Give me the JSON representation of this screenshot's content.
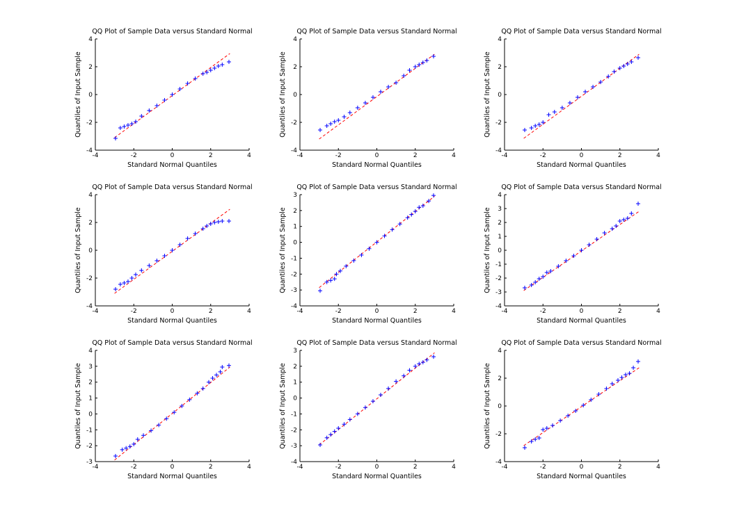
{
  "figure": {
    "background": "#ffffff",
    "axis_color": "#000000",
    "marker_color": "#0000ff",
    "reference_line_color": "#ff0000",
    "marker": "+"
  },
  "chart_data": [
    {
      "type": "scatter",
      "title": "QQ Plot of Sample Data versus Standard Normal",
      "xlabel": "Standard Normal Quantiles",
      "ylabel": "Quantiles of Input Sample",
      "xlim": [
        -4,
        4
      ],
      "ylim": [
        -4,
        4
      ],
      "xticks": [
        "-4",
        "-2",
        "0",
        "2",
        "4"
      ],
      "yticks": [
        "-4",
        "-2",
        "0",
        "2",
        "4"
      ],
      "grid": false,
      "reference_line": {
        "x": [
          -3,
          3
        ],
        "y": [
          -3.1,
          2.95
        ]
      },
      "series": [
        {
          "x": [
            -2.95,
            -2.7,
            -2.5,
            -2.3,
            -2.1,
            -1.9,
            -1.6,
            -1.2,
            -0.8,
            -0.4,
            0,
            0.4,
            0.8,
            1.2,
            1.6,
            1.8,
            2.0,
            2.2,
            2.4,
            2.6,
            2.95
          ],
          "y": [
            -3.15,
            -2.4,
            -2.3,
            -2.2,
            -2.1,
            -1.95,
            -1.55,
            -1.15,
            -0.8,
            -0.4,
            0,
            0.4,
            0.8,
            1.15,
            1.5,
            1.6,
            1.75,
            1.9,
            2.05,
            2.15,
            2.35
          ]
        }
      ]
    },
    {
      "type": "scatter",
      "title": "QQ Plot of Sample Data versus Standard Normal",
      "xlabel": "Standard Normal Quantiles",
      "ylabel": "Quantiles of Input Sample",
      "xlim": [
        -4,
        4
      ],
      "ylim": [
        -4,
        4
      ],
      "xticks": [
        "-4",
        "-2",
        "0",
        "2",
        "4"
      ],
      "yticks": [
        "-4",
        "-2",
        "0",
        "2",
        "4"
      ],
      "grid": false,
      "reference_line": {
        "x": [
          -3,
          3
        ],
        "y": [
          -3.2,
          2.9
        ]
      },
      "series": [
        {
          "x": [
            -2.95,
            -2.6,
            -2.4,
            -2.2,
            -2.0,
            -1.7,
            -1.4,
            -1.0,
            -0.6,
            -0.2,
            0.2,
            0.6,
            1.0,
            1.4,
            1.7,
            2.0,
            2.2,
            2.4,
            2.6,
            2.95
          ],
          "y": [
            -2.55,
            -2.25,
            -2.1,
            -1.95,
            -1.85,
            -1.6,
            -1.3,
            -0.95,
            -0.6,
            -0.2,
            0.2,
            0.55,
            0.85,
            1.35,
            1.75,
            2.0,
            2.15,
            2.3,
            2.45,
            2.75
          ]
        }
      ]
    },
    {
      "type": "scatter",
      "title": "QQ Plot of Sample Data versus Standard Normal",
      "xlabel": "Standard Normal Quantiles",
      "ylabel": "Quantiles of Input Sample",
      "xlim": [
        -4,
        4
      ],
      "ylim": [
        -4,
        4
      ],
      "xticks": [
        "-4",
        "-2",
        "0",
        "2",
        "4"
      ],
      "yticks": [
        "-4",
        "-2",
        "0",
        "2",
        "4"
      ],
      "grid": false,
      "reference_line": {
        "x": [
          -3,
          3
        ],
        "y": [
          -3.15,
          2.9
        ]
      },
      "series": [
        {
          "x": [
            -2.95,
            -2.6,
            -2.4,
            -2.2,
            -2.0,
            -1.7,
            -1.4,
            -1.0,
            -0.6,
            -0.2,
            0.2,
            0.6,
            1.0,
            1.4,
            1.7,
            2.0,
            2.2,
            2.4,
            2.6,
            2.95
          ],
          "y": [
            -2.55,
            -2.4,
            -2.25,
            -2.15,
            -2.0,
            -1.45,
            -1.25,
            -0.95,
            -0.6,
            -0.2,
            0.2,
            0.55,
            0.9,
            1.3,
            1.65,
            1.9,
            2.05,
            2.2,
            2.35,
            2.65
          ]
        }
      ]
    },
    {
      "type": "scatter",
      "title": "QQ Plot of Sample Data versus Standard Normal",
      "xlabel": "Standard Normal Quantiles",
      "ylabel": "Quantiles of Input Sample",
      "xlim": [
        -4,
        4
      ],
      "ylim": [
        -4,
        4
      ],
      "xticks": [
        "-4",
        "-2",
        "0",
        "2",
        "4"
      ],
      "yticks": [
        "-4",
        "-2",
        "0",
        "2",
        "4"
      ],
      "grid": false,
      "reference_line": {
        "x": [
          -3,
          3
        ],
        "y": [
          -3.1,
          2.95
        ]
      },
      "series": [
        {
          "x": [
            -2.95,
            -2.7,
            -2.5,
            -2.3,
            -2.1,
            -1.9,
            -1.6,
            -1.2,
            -0.8,
            -0.4,
            0,
            0.4,
            0.8,
            1.2,
            1.6,
            1.8,
            2.0,
            2.2,
            2.4,
            2.6,
            2.95
          ],
          "y": [
            -2.8,
            -2.45,
            -2.35,
            -2.25,
            -2.0,
            -1.75,
            -1.45,
            -1.1,
            -0.75,
            -0.4,
            0,
            0.4,
            0.85,
            1.2,
            1.55,
            1.75,
            1.9,
            2.0,
            2.05,
            2.1,
            2.1
          ]
        }
      ]
    },
    {
      "type": "scatter",
      "title": "QQ Plot of Sample Data versus Standard Normal",
      "xlabel": "Standard Normal Quantiles",
      "ylabel": "Quantiles of Input Sample",
      "xlim": [
        -4,
        4
      ],
      "ylim": [
        -4,
        3
      ],
      "xticks": [
        "-4",
        "-2",
        "0",
        "2",
        "4"
      ],
      "yticks": [
        "-4",
        "-3",
        "-2",
        "-1",
        "0",
        "1",
        "2",
        "3"
      ],
      "grid": false,
      "reference_line": {
        "x": [
          -3,
          3
        ],
        "y": [
          -2.85,
          2.9
        ]
      },
      "series": [
        {
          "x": [
            -2.95,
            -2.6,
            -2.4,
            -2.2,
            -2.1,
            -1.9,
            -1.6,
            -1.2,
            -0.8,
            -0.4,
            0,
            0.4,
            0.8,
            1.2,
            1.6,
            1.8,
            2.0,
            2.2,
            2.4,
            2.7,
            2.95
          ],
          "y": [
            -3.05,
            -2.5,
            -2.4,
            -2.3,
            -2.0,
            -1.8,
            -1.5,
            -1.15,
            -0.8,
            -0.4,
            0,
            0.4,
            0.8,
            1.15,
            1.55,
            1.75,
            1.95,
            2.2,
            2.3,
            2.6,
            2.95
          ]
        }
      ]
    },
    {
      "type": "scatter",
      "title": "QQ Plot of Sample Data versus Standard Normal",
      "xlabel": "Standard Normal Quantiles",
      "ylabel": "Quantiles of Input Sample",
      "xlim": [
        -4,
        4
      ],
      "ylim": [
        -4,
        4
      ],
      "xticks": [
        "-4",
        "-2",
        "0",
        "2",
        "4"
      ],
      "yticks": [
        "-4",
        "-3",
        "-2",
        "-1",
        "0",
        "1",
        "2",
        "3",
        "4"
      ],
      "grid": false,
      "reference_line": {
        "x": [
          -3,
          3
        ],
        "y": [
          -2.9,
          2.8
        ]
      },
      "series": [
        {
          "x": [
            -2.95,
            -2.6,
            -2.4,
            -2.2,
            -2.0,
            -1.8,
            -1.6,
            -1.2,
            -0.8,
            -0.4,
            0,
            0.4,
            0.8,
            1.2,
            1.6,
            1.8,
            2.0,
            2.2,
            2.4,
            2.6,
            2.95
          ],
          "y": [
            -2.7,
            -2.5,
            -2.3,
            -2.05,
            -1.9,
            -1.6,
            -1.5,
            -1.15,
            -0.75,
            -0.4,
            0,
            0.4,
            0.8,
            1.25,
            1.55,
            1.75,
            2.1,
            2.2,
            2.3,
            2.65,
            3.35
          ]
        }
      ]
    },
    {
      "type": "scatter",
      "title": "QQ Plot of Sample Data versus Standard Normal",
      "xlabel": "Standard Normal Quantiles",
      "ylabel": "Quantiles of Input Sample",
      "xlim": [
        -4,
        4
      ],
      "ylim": [
        -3,
        4
      ],
      "xticks": [
        "-4",
        "-2",
        "0",
        "2",
        "4"
      ],
      "yticks": [
        "-3",
        "-2",
        "-1",
        "0",
        "1",
        "2",
        "3",
        "4"
      ],
      "grid": false,
      "reference_line": {
        "x": [
          -3,
          3
        ],
        "y": [
          -2.9,
          2.95
        ]
      },
      "series": [
        {
          "x": [
            -2.95,
            -2.6,
            -2.4,
            -2.2,
            -2.0,
            -1.8,
            -1.5,
            -1.1,
            -0.7,
            -0.3,
            0.1,
            0.5,
            0.9,
            1.3,
            1.6,
            1.9,
            2.1,
            2.3,
            2.5,
            2.6,
            2.95
          ],
          "y": [
            -2.65,
            -2.25,
            -2.15,
            -2.05,
            -1.9,
            -1.6,
            -1.35,
            -1.05,
            -0.7,
            -0.3,
            0.1,
            0.5,
            0.9,
            1.3,
            1.6,
            2.0,
            2.25,
            2.45,
            2.65,
            2.95,
            3.05
          ]
        }
      ]
    },
    {
      "type": "scatter",
      "title": "QQ Plot of Sample Data versus Standard Normal",
      "xlabel": "Standard Normal Quantiles",
      "ylabel": "Quantiles of Input Sample",
      "xlim": [
        -4,
        4
      ],
      "ylim": [
        -4,
        3
      ],
      "xticks": [
        "-4",
        "-2",
        "0",
        "2",
        "4"
      ],
      "yticks": [
        "-4",
        "-3",
        "-2",
        "-1",
        "0",
        "1",
        "2",
        "3"
      ],
      "grid": false,
      "reference_line": {
        "x": [
          -3,
          3
        ],
        "y": [
          -2.95,
          2.85
        ]
      },
      "series": [
        {
          "x": [
            -2.95,
            -2.6,
            -2.4,
            -2.2,
            -2.0,
            -1.7,
            -1.4,
            -1.0,
            -0.6,
            -0.2,
            0.2,
            0.6,
            1.0,
            1.4,
            1.7,
            2.0,
            2.2,
            2.4,
            2.6,
            2.95
          ],
          "y": [
            -2.95,
            -2.5,
            -2.3,
            -2.1,
            -1.9,
            -1.65,
            -1.35,
            -1.0,
            -0.6,
            -0.2,
            0.2,
            0.6,
            1.05,
            1.4,
            1.75,
            2.0,
            2.15,
            2.25,
            2.4,
            2.6
          ]
        }
      ]
    },
    {
      "type": "scatter",
      "title": "QQ Plot of Sample Data versus Standard Normal",
      "xlabel": "Standard Normal Quantiles",
      "ylabel": "Quantiles of Input Sample",
      "xlim": [
        -4,
        4
      ],
      "ylim": [
        -4,
        4
      ],
      "xticks": [
        "-4",
        "-2",
        "0",
        "2",
        "4"
      ],
      "yticks": [
        "-4",
        "-2",
        "0",
        "2",
        "4"
      ],
      "grid": false,
      "reference_line": {
        "x": [
          -3,
          3
        ],
        "y": [
          -2.85,
          2.75
        ]
      },
      "series": [
        {
          "x": [
            -2.95,
            -2.6,
            -2.4,
            -2.2,
            -2.0,
            -1.8,
            -1.5,
            -1.1,
            -0.7,
            -0.3,
            0.1,
            0.5,
            0.9,
            1.3,
            1.6,
            1.9,
            2.1,
            2.3,
            2.5,
            2.7,
            2.95
          ],
          "y": [
            -3.0,
            -2.55,
            -2.4,
            -2.3,
            -1.7,
            -1.6,
            -1.4,
            -1.05,
            -0.7,
            -0.35,
            0.05,
            0.45,
            0.85,
            1.25,
            1.6,
            1.85,
            2.05,
            2.25,
            2.35,
            2.75,
            3.2
          ]
        }
      ]
    }
  ]
}
